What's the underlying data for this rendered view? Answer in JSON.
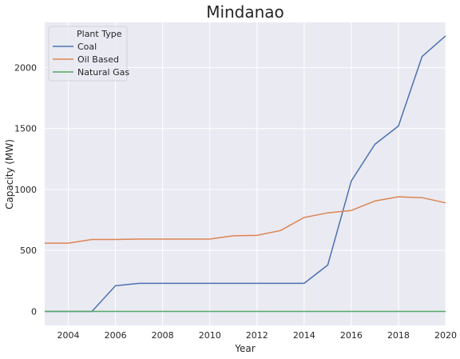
{
  "chart_data": {
    "type": "line",
    "title": "Mindanao",
    "xlabel": "Year",
    "ylabel": "Capacity (MW)",
    "xlim": [
      2003,
      2020
    ],
    "ylim": [
      -115,
      2370
    ],
    "xticks": [
      2004,
      2006,
      2008,
      2010,
      2012,
      2014,
      2016,
      2018,
      2020
    ],
    "yticks": [
      0,
      500,
      1000,
      1500,
      2000
    ],
    "grid": true,
    "legend": {
      "title": "Plant Type",
      "position": "top-left"
    },
    "x": [
      2003,
      2004,
      2005,
      2006,
      2007,
      2008,
      2009,
      2010,
      2011,
      2012,
      2013,
      2014,
      2015,
      2016,
      2017,
      2018,
      2019,
      2020
    ],
    "series": [
      {
        "name": "Coal",
        "color": "#4c72b0",
        "values": [
          0,
          0,
          0,
          210,
          230,
          230,
          230,
          230,
          230,
          230,
          230,
          230,
          380,
          1070,
          1370,
          1520,
          2090,
          2260
        ]
      },
      {
        "name": "Oil Based",
        "color": "#dd8452",
        "values": [
          560,
          560,
          590,
          590,
          593,
          593,
          593,
          593,
          620,
          623,
          663,
          770,
          808,
          828,
          905,
          940,
          933,
          890
        ]
      },
      {
        "name": "Natural Gas",
        "color": "#55a868",
        "values": [
          0,
          0,
          0,
          0,
          0,
          0,
          0,
          0,
          0,
          0,
          0,
          0,
          0,
          0,
          0,
          0,
          0,
          0
        ]
      }
    ]
  }
}
